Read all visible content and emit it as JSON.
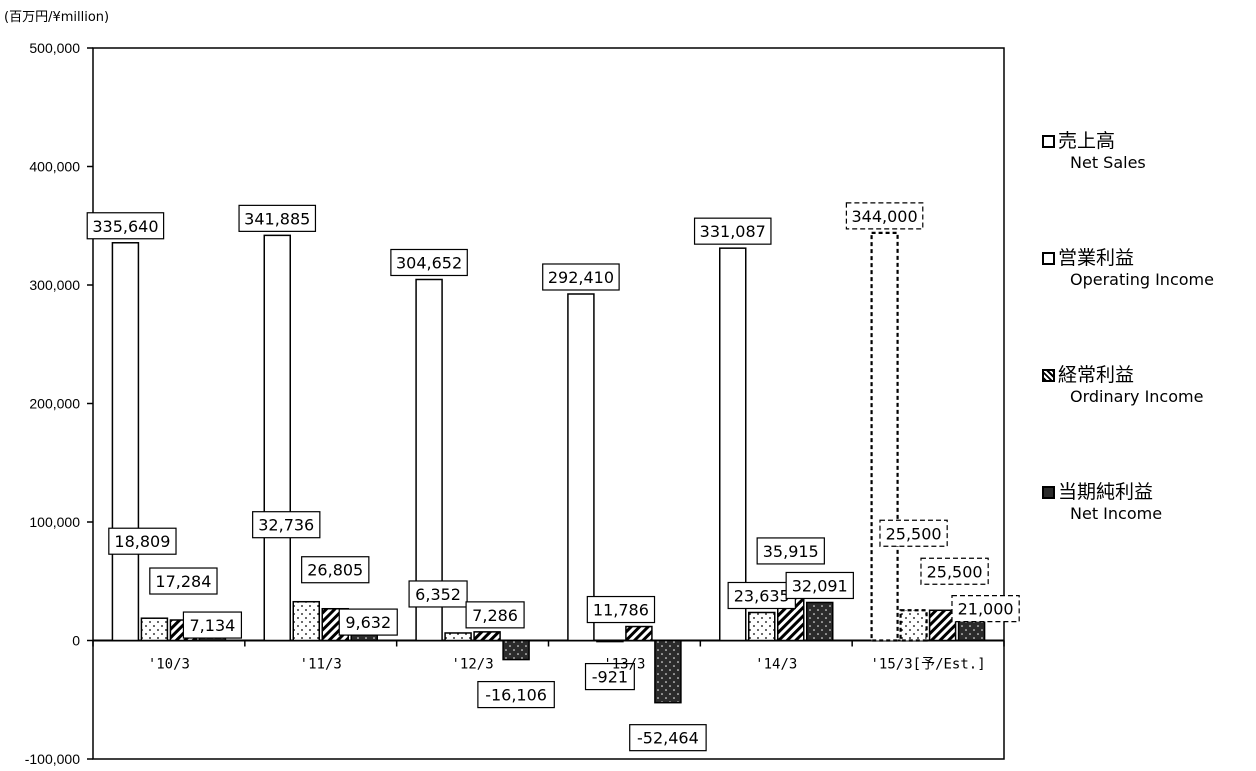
{
  "unit_label": "(百万円/¥million)",
  "legend": [
    {
      "jp": "売上高",
      "en": "Net Sales",
      "icon": "white-square-swatch"
    },
    {
      "jp": "営業利益",
      "en": "Operating Income",
      "icon": "white-square-swatch"
    },
    {
      "jp": "経常利益",
      "en": "Ordinary Income",
      "icon": "hatched-square-swatch"
    },
    {
      "jp": "当期純利益",
      "en": "Net Income",
      "icon": "black-square-swatch"
    }
  ],
  "chart_data": {
    "type": "bar",
    "categories": [
      "'10/3",
      "'11/3",
      "'12/3",
      "'13/3",
      "'14/3",
      "'15/3[予/Est.]"
    ],
    "series": [
      {
        "name": "売上高 Net Sales",
        "values": [
          335640,
          341885,
          304652,
          292410,
          331087,
          344000
        ],
        "labels": [
          "335,640",
          "341,885",
          "304,652",
          "292,410",
          "331,087",
          "344,000"
        ]
      },
      {
        "name": "営業利益 Operating Income",
        "values": [
          18809,
          32736,
          6352,
          -921,
          23635,
          25500
        ],
        "labels": [
          "18,809",
          "32,736",
          "6,352",
          "-921",
          "23,635",
          "25,500"
        ]
      },
      {
        "name": "経常利益 Ordinary Income",
        "values": [
          17284,
          26805,
          7286,
          11786,
          35915,
          25500
        ],
        "labels": [
          "17,284",
          "26,805",
          "7,286",
          "11,786",
          "35,915",
          "25,500"
        ]
      },
      {
        "name": "当期純利益 Net Income",
        "values": [
          7134,
          9632,
          -16106,
          -52464,
          32091,
          21000
        ],
        "labels": [
          "7,134",
          "9,632",
          "-16,106",
          "-52,464",
          "32,091",
          "21,000"
        ]
      }
    ],
    "ylim": [
      -100000,
      500000
    ],
    "yticks": [
      {
        "value": 500000,
        "label": "500,000"
      },
      {
        "value": 400000,
        "label": "400,000"
      },
      {
        "value": 300000,
        "label": "300,000"
      },
      {
        "value": 200000,
        "label": "200,000"
      },
      {
        "value": 100000,
        "label": "100,000"
      },
      {
        "value": 0,
        "label": "0"
      },
      {
        "value": -100000,
        "label": "-100,000"
      }
    ],
    "estimate_category": "'15/3[予/Est.]",
    "legend_position": "right",
    "grid": false
  }
}
